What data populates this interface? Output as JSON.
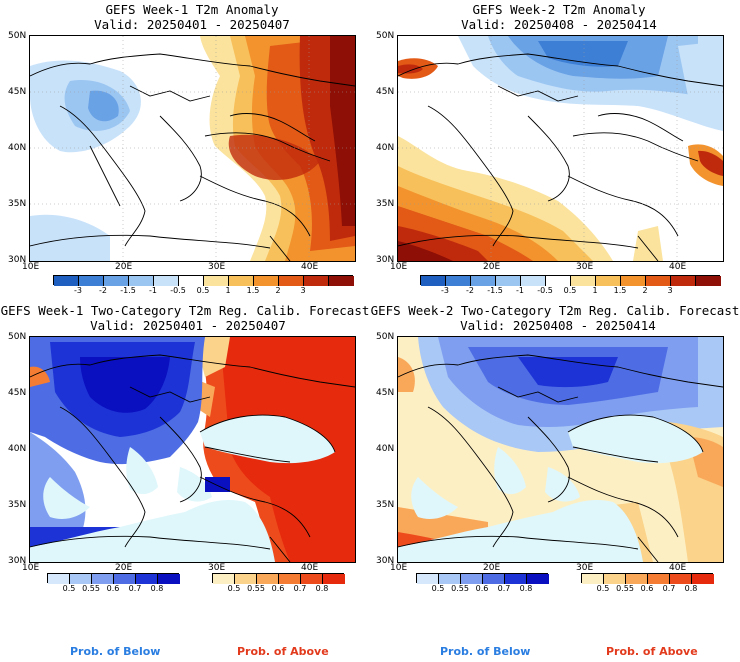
{
  "panels": [
    {
      "title": "GEFS Week-1 T2m Anomaly",
      "valid": "Valid: 20250401 - 20250407"
    },
    {
      "title": "GEFS Week-2 T2m Anomaly",
      "valid": "Valid: 20250408 - 20250414"
    },
    {
      "title": "GEFS Week-1 Two-Category T2m Reg. Calib. Forecast",
      "valid": "Valid: 20250401 - 20250407"
    },
    {
      "title": "GEFS Week-2 Two-Category T2m Reg. Calib. Forecast",
      "valid": "Valid: 20250408 - 20250414"
    }
  ],
  "lat_labels": [
    "50N",
    "45N",
    "40N",
    "35N",
    "30N"
  ],
  "lon_labels": [
    "10E",
    "20E",
    "30E",
    "40E"
  ],
  "anomaly_colorbar": {
    "labels": [
      "-3",
      "-2",
      "-1.5",
      "-1",
      "-0.5",
      "0.5",
      "1",
      "1.5",
      "2",
      "3"
    ],
    "colors": [
      "#1f5fbf",
      "#3e7fd6",
      "#6aa2e6",
      "#9cc6f2",
      "#c8e2fa",
      "#ffffff",
      "#fbe39e",
      "#f8c05a",
      "#f2932e",
      "#e25a16",
      "#c02a0c",
      "#8e0f05"
    ]
  },
  "prob_below_colorbar": {
    "labels": [
      "0.5",
      "0.55",
      "0.6",
      "0.7",
      "0.8"
    ],
    "colors": [
      "#d6e8fb",
      "#aac8f5",
      "#7f9ef0",
      "#4e6de4",
      "#1d33d6",
      "#0a0fc0"
    ]
  },
  "prob_above_colorbar": {
    "labels": [
      "0.5",
      "0.55",
      "0.6",
      "0.7",
      "0.8"
    ],
    "colors": [
      "#fdefc4",
      "#fbd38a",
      "#f9a85a",
      "#f47c33",
      "#ee4b1c",
      "#e62a0d"
    ]
  },
  "legend": {
    "below": "Prob. of Below",
    "above": "Prob. of Above"
  },
  "colors": {
    "below_text": "#2a7de1",
    "above_text": "#e23a1c",
    "sea": "#dff7fb"
  }
}
